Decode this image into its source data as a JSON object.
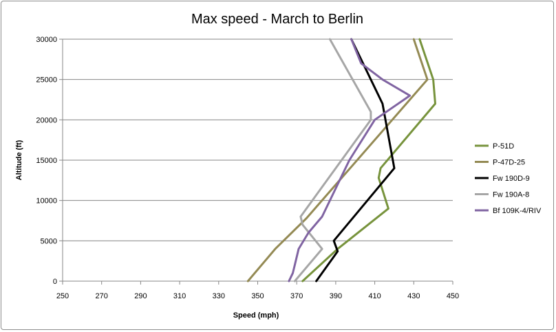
{
  "chart_data": {
    "type": "line",
    "title": "Max speed - March to Berlin",
    "xlabel": "Speed (mph)",
    "ylabel": "Altitude (ft)",
    "xlim": [
      250,
      450
    ],
    "ylim": [
      0,
      30000
    ],
    "x_ticks": [
      "250",
      "270",
      "290",
      "310",
      "330",
      "350",
      "370",
      "390",
      "410",
      "430",
      "450"
    ],
    "y_ticks": [
      "0",
      "5000",
      "10000",
      "15000",
      "20000",
      "25000",
      "30000"
    ],
    "grid": "horizontal",
    "legend_position": "right",
    "series": [
      {
        "name": "P-51D",
        "color": "#77933c",
        "points": [
          [
            373,
            0
          ],
          [
            391,
            4000
          ],
          [
            417,
            9000
          ],
          [
            412,
            12800
          ],
          [
            413,
            14000
          ],
          [
            441,
            22000
          ],
          [
            440,
            25000
          ],
          [
            433,
            30000
          ]
        ]
      },
      {
        "name": "P-47D-25",
        "color": "#948a54",
        "points": [
          [
            345,
            0
          ],
          [
            359,
            4000
          ],
          [
            375,
            7800
          ],
          [
            437,
            25000
          ],
          [
            430,
            30000
          ]
        ]
      },
      {
        "name": "Fw 190D-9",
        "color": "#000000",
        "points": [
          [
            380,
            0
          ],
          [
            391,
            3700
          ],
          [
            389,
            5000
          ],
          [
            420,
            14000
          ],
          [
            414,
            22000
          ],
          [
            398,
            30000
          ]
        ]
      },
      {
        "name": "Fw 190A-8",
        "color": "#a6a6a6",
        "points": [
          [
            369,
            0
          ],
          [
            383,
            4000
          ],
          [
            373,
            7000
          ],
          [
            372,
            8000
          ],
          [
            408,
            20000
          ],
          [
            408,
            21000
          ],
          [
            387,
            30000
          ]
        ]
      },
      {
        "name": "Bf 109K-4/RIV",
        "color": "#8064a2",
        "points": [
          [
            366,
            0
          ],
          [
            368,
            1000
          ],
          [
            369,
            2000
          ],
          [
            371,
            4000
          ],
          [
            376,
            6000
          ],
          [
            383,
            8000
          ],
          [
            389,
            11000
          ],
          [
            397,
            15000
          ],
          [
            410,
            20000
          ],
          [
            428,
            23000
          ],
          [
            414,
            25000
          ],
          [
            403,
            27000
          ],
          [
            398,
            30000
          ]
        ]
      }
    ]
  }
}
